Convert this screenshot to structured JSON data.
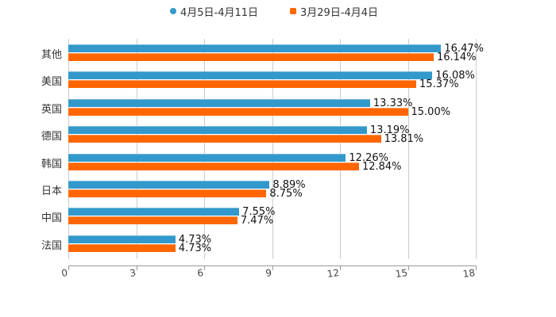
{
  "chart_data": {
    "type": "bar",
    "orientation": "horizontal",
    "title": "",
    "xlabel": "",
    "ylabel": "",
    "categories": [
      "其他",
      "美国",
      "英国",
      "德国",
      "韩国",
      "日本",
      "中国",
      "法国"
    ],
    "series": [
      {
        "name": "4月5日-4月11日",
        "color": "#3399cc",
        "marker": "circle",
        "values": [
          16.47,
          16.08,
          13.33,
          13.19,
          12.26,
          8.89,
          7.55,
          4.73
        ],
        "labels": [
          "16.47%",
          "16.08%",
          "13.33%",
          "13.19%",
          "12.26%",
          "8.89%",
          "7.55%",
          "4.73%"
        ]
      },
      {
        "name": "3月29日-4月4日",
        "color": "#ff6600",
        "marker": "square",
        "values": [
          16.14,
          15.37,
          15.0,
          13.81,
          12.84,
          8.75,
          7.47,
          4.73
        ],
        "labels": [
          "16.14%",
          "15.37%",
          "15.00%",
          "13.81%",
          "12.84%",
          "8.75%",
          "7.47%",
          "4.73%"
        ]
      }
    ],
    "xlim": [
      0,
      18
    ],
    "xticks": [
      0,
      3,
      6,
      9,
      12,
      15,
      18
    ],
    "xtick_labels": [
      "0",
      "3",
      "6",
      "9",
      "12",
      "15",
      "18"
    ],
    "grid": true,
    "legend_position": "top"
  }
}
